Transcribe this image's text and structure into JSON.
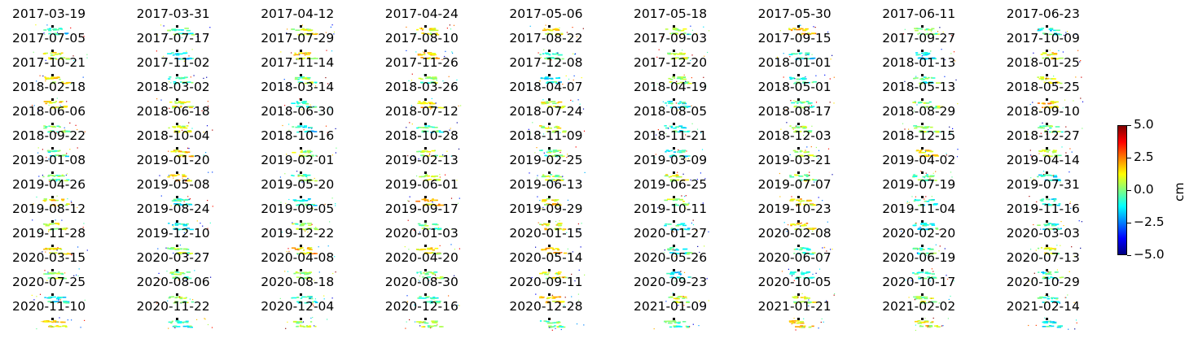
{
  "chart_data": {
    "type": "heatmap",
    "panel_titles": [
      "2017-03-19",
      "2017-03-31",
      "2017-04-12",
      "2017-04-24",
      "2017-05-06",
      "2017-05-18",
      "2017-05-30",
      "2017-06-11",
      "2017-06-23",
      "2017-07-05",
      "2017-07-17",
      "2017-07-29",
      "2017-08-10",
      "2017-08-22",
      "2017-09-03",
      "2017-09-15",
      "2017-09-27",
      "2017-10-09",
      "2017-10-21",
      "2017-11-02",
      "2017-11-14",
      "2017-11-26",
      "2017-12-08",
      "2017-12-20",
      "2018-01-01",
      "2018-01-13",
      "2018-01-25",
      "2018-02-18",
      "2018-03-02",
      "2018-03-14",
      "2018-03-26",
      "2018-04-07",
      "2018-04-19",
      "2018-05-01",
      "2018-05-13",
      "2018-05-25",
      "2018-06-06",
      "2018-06-18",
      "2018-06-30",
      "2018-07-12",
      "2018-07-24",
      "2018-08-05",
      "2018-08-17",
      "2018-08-29",
      "2018-09-10",
      "2018-09-22",
      "2018-10-04",
      "2018-10-16",
      "2018-10-28",
      "2018-11-09",
      "2018-11-21",
      "2018-12-03",
      "2018-12-15",
      "2018-12-27",
      "2019-01-08",
      "2019-01-20",
      "2019-02-01",
      "2019-02-13",
      "2019-02-25",
      "2019-03-09",
      "2019-03-21",
      "2019-04-02",
      "2019-04-14",
      "2019-04-26",
      "2019-05-08",
      "2019-05-20",
      "2019-06-01",
      "2019-06-13",
      "2019-06-25",
      "2019-07-07",
      "2019-07-19",
      "2019-07-31",
      "2019-08-12",
      "2019-08-24",
      "2019-09-05",
      "2019-09-17",
      "2019-09-29",
      "2019-10-11",
      "2019-10-23",
      "2019-11-04",
      "2019-11-16",
      "2019-11-28",
      "2019-12-10",
      "2019-12-22",
      "2020-01-03",
      "2020-01-15",
      "2020-01-27",
      "2020-02-08",
      "2020-02-20",
      "2020-03-03",
      "2020-03-15",
      "2020-03-27",
      "2020-04-08",
      "2020-04-20",
      "2020-05-14",
      "2020-05-26",
      "2020-06-07",
      "2020-06-19",
      "2020-07-13",
      "2020-07-25",
      "2020-08-06",
      "2020-08-18",
      "2020-08-30",
      "2020-09-11",
      "2020-09-23",
      "2020-10-05",
      "2020-10-17",
      "2020-10-29",
      "2020-11-10",
      "2020-11-22",
      "2020-12-04",
      "2020-12-16",
      "2020-12-28",
      "2021-01-09",
      "2021-01-21",
      "2021-02-02",
      "2021-02-14"
    ],
    "colormap": "jet",
    "colorbar": {
      "min": -5.0,
      "max": 5.0,
      "ticks": [
        "5.0",
        "2.5",
        "0.0",
        "−2.5",
        "−5.0"
      ],
      "label": "cm"
    },
    "axes_visible": false
  }
}
